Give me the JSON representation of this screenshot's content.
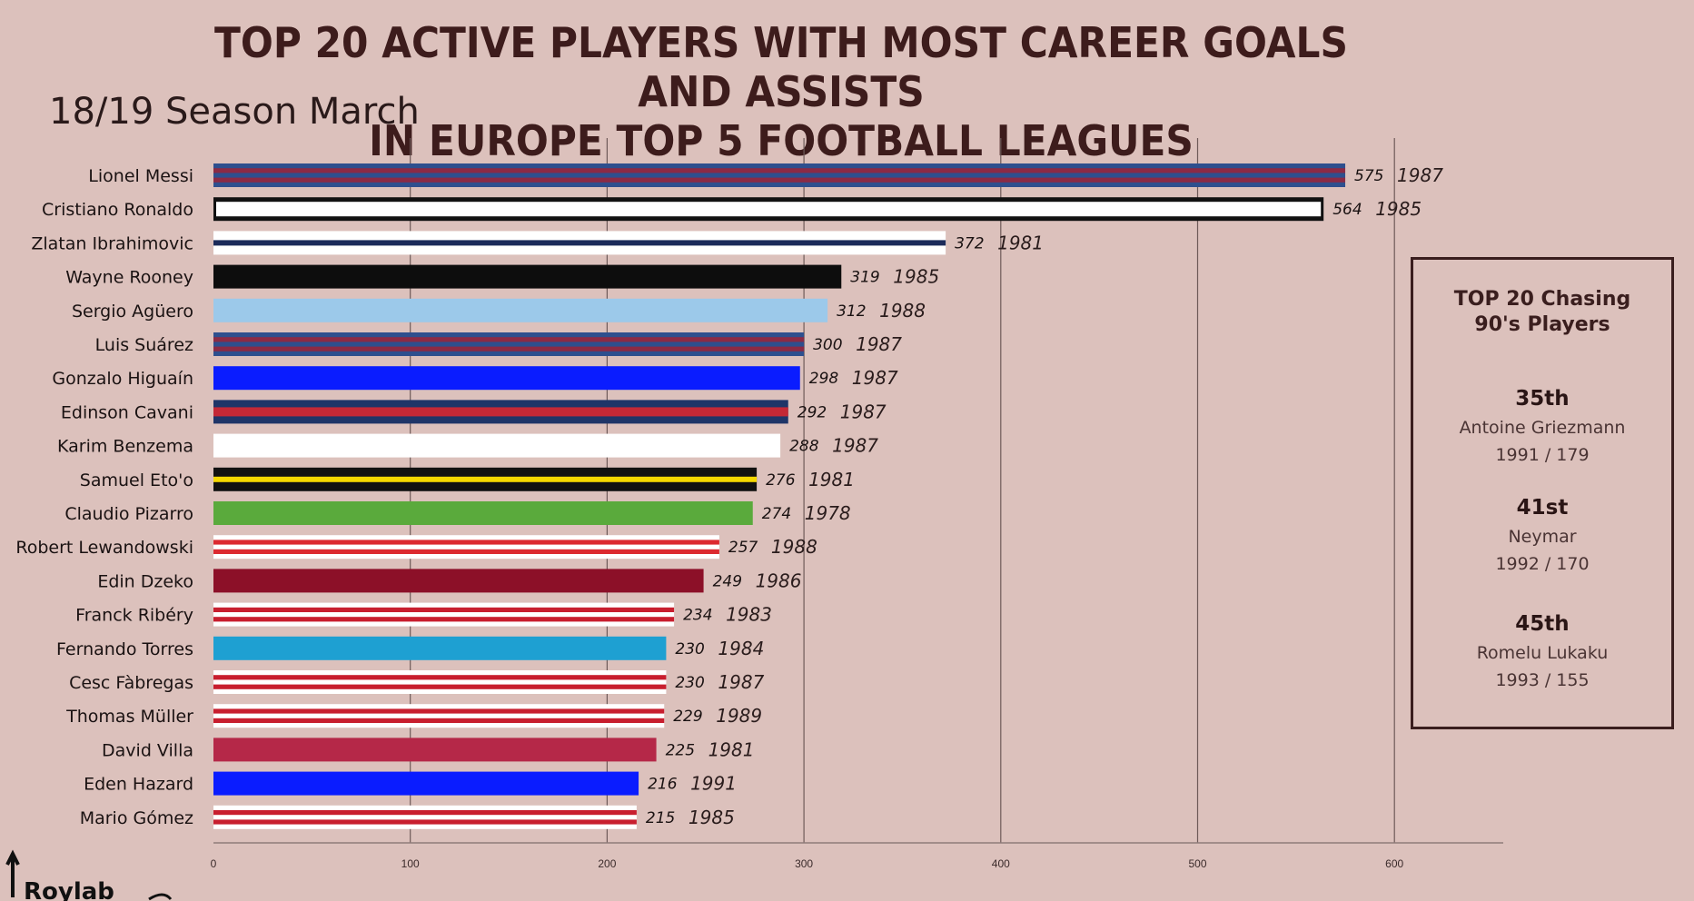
{
  "title_line1": "TOP 20 ACTIVE PLAYERS WITH MOST CAREER GOALS AND ASSISTS",
  "title_line2": "IN EUROPE TOP 5 FOOTBALL LEAGUES",
  "subtitle": "18/19 Season March",
  "logo_text": "Roylab",
  "chart_data": {
    "type": "bar",
    "orientation": "horizontal",
    "title": "TOP 20 ACTIVE PLAYERS WITH MOST CAREER GOALS AND ASSISTS IN EUROPE TOP 5 FOOTBALL LEAGUES",
    "xlim": [
      0,
      650
    ],
    "xticks": [
      0,
      100,
      200,
      300,
      400,
      500,
      600
    ],
    "grid": true,
    "bars": [
      {
        "player": "Lionel Messi",
        "value": 575,
        "birth_year": "1987",
        "colors": [
          "#2e4f8e",
          "#8b2a45"
        ],
        "style": "stripes-h"
      },
      {
        "player": "Cristiano Ronaldo",
        "value": 564,
        "birth_year": "1985",
        "colors": [
          "#ffffff",
          "#111111"
        ],
        "style": "outline"
      },
      {
        "player": "Zlatan Ibrahimovic",
        "value": 372,
        "birth_year": "1981",
        "colors": [
          "#ffffff",
          "#1c2b5a"
        ],
        "style": "center-line"
      },
      {
        "player": "Wayne Rooney",
        "value": 319,
        "birth_year": "1985",
        "colors": [
          "#0d0d0d"
        ],
        "style": "solid"
      },
      {
        "player": "Sergio Agüero",
        "value": 312,
        "birth_year": "1988",
        "colors": [
          "#9cc9ea"
        ],
        "style": "solid"
      },
      {
        "player": "Luis Suárez",
        "value": 300,
        "birth_year": "1987",
        "colors": [
          "#2e4f8e",
          "#8b2a45"
        ],
        "style": "stripes-h"
      },
      {
        "player": "Gonzalo Higuaín",
        "value": 298,
        "birth_year": "1987",
        "colors": [
          "#0a1cff"
        ],
        "style": "solid"
      },
      {
        "player": "Edinson Cavani",
        "value": 292,
        "birth_year": "1987",
        "colors": [
          "#1f3568",
          "#c42836"
        ],
        "style": "split"
      },
      {
        "player": "Karim Benzema",
        "value": 288,
        "birth_year": "1987",
        "colors": [
          "#ffffff"
        ],
        "style": "solid"
      },
      {
        "player": "Samuel Eto'o",
        "value": 276,
        "birth_year": "1981",
        "colors": [
          "#111111",
          "#f5d800"
        ],
        "style": "center-line"
      },
      {
        "player": "Claudio Pizarro",
        "value": 274,
        "birth_year": "1978",
        "colors": [
          "#5aaa3c"
        ],
        "style": "solid"
      },
      {
        "player": "Robert Lewandowski",
        "value": 257,
        "birth_year": "1988",
        "colors": [
          "#ffffff",
          "#dc2a30"
        ],
        "style": "stripes-h"
      },
      {
        "player": "Edin Dzeko",
        "value": 249,
        "birth_year": "1986",
        "colors": [
          "#8c1028"
        ],
        "style": "solid"
      },
      {
        "player": "Franck Ribéry",
        "value": 234,
        "birth_year": "1983",
        "colors": [
          "#ffffff",
          "#c81e2e"
        ],
        "style": "stripes-h"
      },
      {
        "player": "Fernando Torres",
        "value": 230,
        "birth_year": "1984",
        "colors": [
          "#1ea0d2"
        ],
        "style": "solid"
      },
      {
        "player": "Cesc Fàbregas",
        "value": 230,
        "birth_year": "1987",
        "colors": [
          "#ffffff",
          "#c81e2e"
        ],
        "style": "stripes-h"
      },
      {
        "player": "Thomas Müller",
        "value": 229,
        "birth_year": "1989",
        "colors": [
          "#ffffff",
          "#c81e2e"
        ],
        "style": "stripes-h"
      },
      {
        "player": "David Villa",
        "value": 225,
        "birth_year": "1981",
        "colors": [
          "#b52848"
        ],
        "style": "solid"
      },
      {
        "player": "Eden Hazard",
        "value": 216,
        "birth_year": "1991",
        "colors": [
          "#0a1cff"
        ],
        "style": "solid"
      },
      {
        "player": "Mario Gómez",
        "value": 215,
        "birth_year": "1985",
        "colors": [
          "#ffffff",
          "#c81e2e"
        ],
        "style": "stripes-h"
      }
    ]
  },
  "side_panel": {
    "title_line1": "TOP 20 Chasing",
    "title_line2": "90's Players",
    "chasers": [
      {
        "rank": "35th",
        "name": "Antoine Griezmann",
        "info": "1991 / 179"
      },
      {
        "rank": "41st",
        "name": "Neymar",
        "info": "1992 / 170"
      },
      {
        "rank": "45th",
        "name": "Romelu Lukaku",
        "info": "1993 / 155"
      }
    ]
  }
}
